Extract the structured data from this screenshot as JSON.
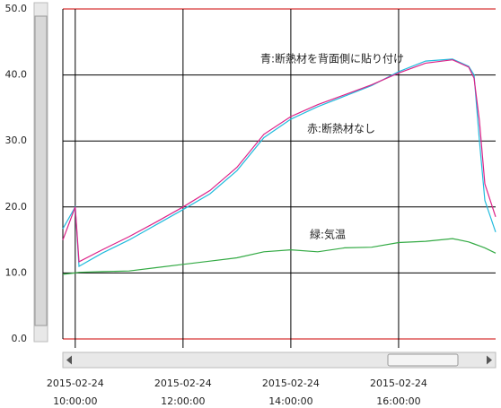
{
  "chart_data": {
    "type": "line",
    "annotations": [
      "青:断熱材を背面側に貼り付け",
      "赤:断熱材なし",
      "緑:気温"
    ],
    "x": [
      9.77,
      10,
      10.07,
      10.5,
      11,
      11.5,
      12,
      12.5,
      13,
      13.5,
      14,
      14.5,
      15,
      15.5,
      16,
      16.5,
      17,
      17.3,
      17.4,
      17.5,
      17.6,
      17.8
    ],
    "series": [
      {
        "color": "#22bbdd",
        "values": [
          16.7,
          20,
          11,
          13,
          15,
          17.3,
          19.6,
          22,
          25.5,
          30.5,
          33.3,
          35.2,
          36.8,
          38.4,
          40.5,
          42.1,
          42.4,
          41.3,
          40,
          30,
          21,
          16.2
        ]
      },
      {
        "color": "#dd2288",
        "values": [
          15,
          20,
          11.7,
          13.5,
          15.5,
          17.7,
          20,
          22.5,
          26,
          31,
          33.7,
          35.5,
          37,
          38.5,
          40.3,
          41.8,
          42.3,
          41.2,
          39.5,
          33,
          23.5,
          18.5
        ]
      },
      {
        "color": "#33aa44",
        "values": [
          9.8,
          10,
          10.1,
          10.2,
          10.3,
          10.8,
          11.3,
          11.8,
          12.3,
          13.2,
          13.5,
          13.2,
          13.8,
          13.9,
          14.6,
          14.8,
          15.2,
          14.7,
          14.4,
          14.1,
          13.8,
          13
        ]
      }
    ],
    "xlim": [
      9.77,
      17.8
    ],
    "xticks": [
      {
        "value": 10,
        "label": "2015-02-24 10:00:00"
      },
      {
        "value": 12,
        "label": "2015-02-24 12:00:00"
      },
      {
        "value": 14,
        "label": "2015-02-24 14:00:00"
      },
      {
        "value": 16,
        "label": "2015-02-24 16:00:00"
      }
    ],
    "ylim": [
      0,
      50
    ],
    "yticks": [
      {
        "value": 0,
        "label": "0.0"
      },
      {
        "value": 10,
        "label": "10.0"
      },
      {
        "value": 20,
        "label": "20.0"
      },
      {
        "value": 30,
        "label": "30.0"
      },
      {
        "value": 40,
        "label": "40.0"
      },
      {
        "value": 50,
        "label": "50.0"
      }
    ],
    "grid": true
  }
}
